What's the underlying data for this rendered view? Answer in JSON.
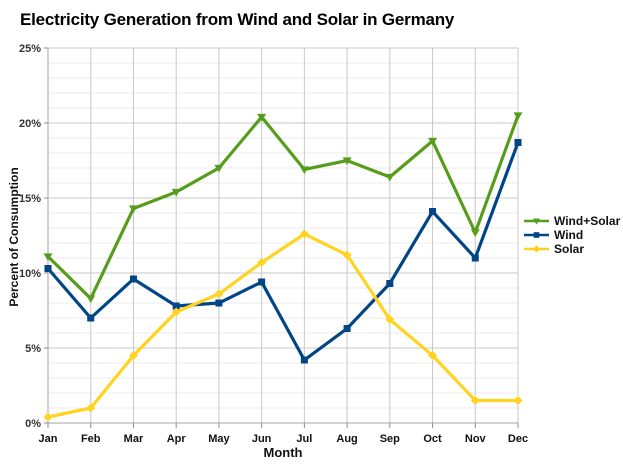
{
  "chart_data": {
    "type": "line",
    "title": "Electricity Generation from Wind and Solar in Germany",
    "xlabel": "Month",
    "ylabel": "Percent of Consumption",
    "categories": [
      "Jan",
      "Feb",
      "Mar",
      "Apr",
      "May",
      "Jun",
      "Jul",
      "Aug",
      "Sep",
      "Oct",
      "Nov",
      "Dec"
    ],
    "series": [
      {
        "name": "Wind+Solar",
        "color": "#579D1C",
        "marker": "triangle-down",
        "values": [
          11.1,
          8.3,
          14.3,
          15.4,
          17.0,
          20.4,
          16.9,
          17.5,
          16.4,
          18.8,
          12.7,
          20.5
        ]
      },
      {
        "name": "Wind",
        "color": "#004586",
        "marker": "square",
        "values": [
          10.3,
          7.0,
          9.6,
          7.8,
          8.0,
          9.4,
          4.2,
          6.3,
          9.3,
          14.1,
          11.0,
          18.7
        ]
      },
      {
        "name": "Solar",
        "color": "#FFD320",
        "marker": "diamond",
        "values": [
          0.4,
          1.0,
          4.5,
          7.4,
          8.6,
          10.7,
          12.6,
          11.2,
          6.9,
          4.5,
          1.5,
          1.5
        ]
      }
    ],
    "ylim": [
      0,
      25
    ],
    "ytick_values": [
      0,
      5,
      10,
      15,
      20,
      25
    ],
    "ytick_labels": [
      "0%",
      "5%",
      "10%",
      "15%",
      "20%",
      "25%"
    ],
    "minor_grid_step": 1,
    "grid": true,
    "legend_position": "right",
    "colors": {
      "minor_grid": "#ebebeb",
      "major_grid": "#c8c8c8",
      "axis": "#a6a6a6",
      "tick": "#8c8c8c",
      "background": "#ffffff"
    }
  }
}
